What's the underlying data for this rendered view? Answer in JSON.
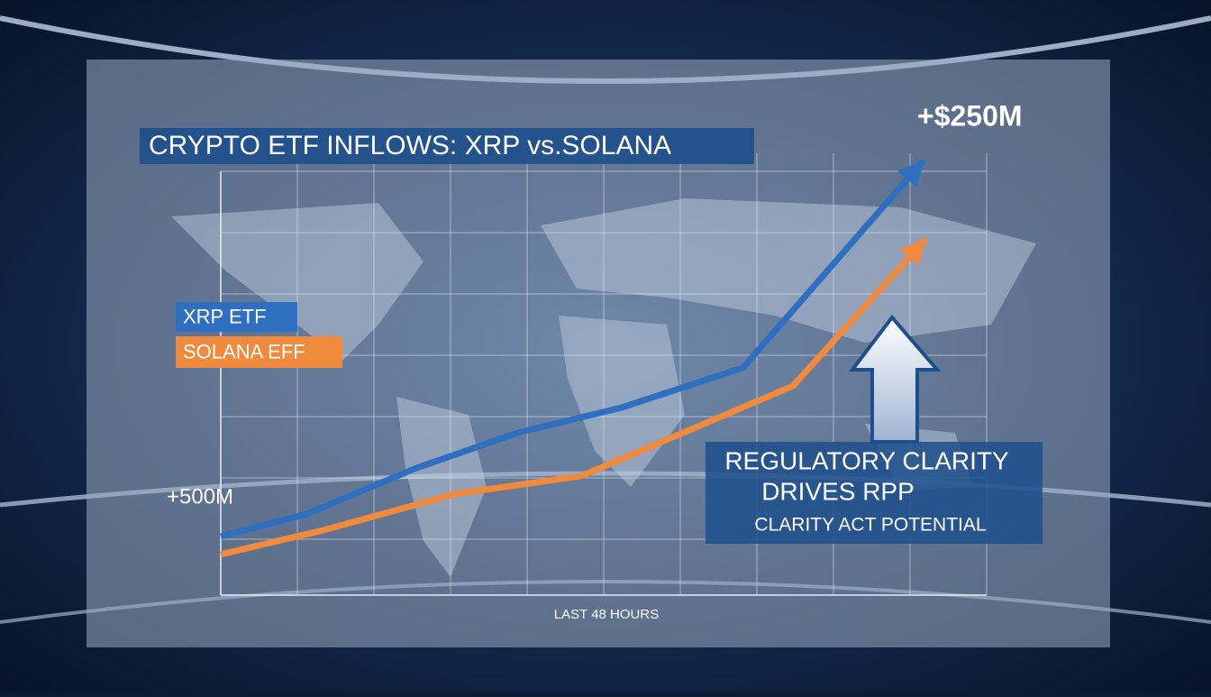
{
  "chart_data": {
    "type": "line",
    "title": "CRYPTO ETF INFLOWS:  XRP vs.SOLANA",
    "x_label": "LAST 48 HOURS",
    "xlim": [
      0,
      10
    ],
    "ylim": [
      0,
      105
    ],
    "series": [
      {
        "name": "XRP ETF",
        "color": "#2f6fc0",
        "x": [
          0,
          1.12,
          2.53,
          3.88,
          5.24,
          6.82,
          9.18
        ],
        "values": [
          13.7,
          18.9,
          29.5,
          37.9,
          43.8,
          53.1,
          101.5
        ]
      },
      {
        "name": "SOLANA EFF",
        "color": "#f08a3c",
        "x": [
          0,
          1.35,
          3.06,
          4.71,
          7.47,
          9.21
        ],
        "values": [
          9.5,
          15.2,
          23.6,
          27.8,
          48.8,
          83.2
        ]
      }
    ],
    "annotations": [
      "+$250M",
      "+500M",
      "REGULATORY CLARITY",
      "DRIVES RPP",
      "CLARITY ACT POTENTIAL"
    ]
  }
}
